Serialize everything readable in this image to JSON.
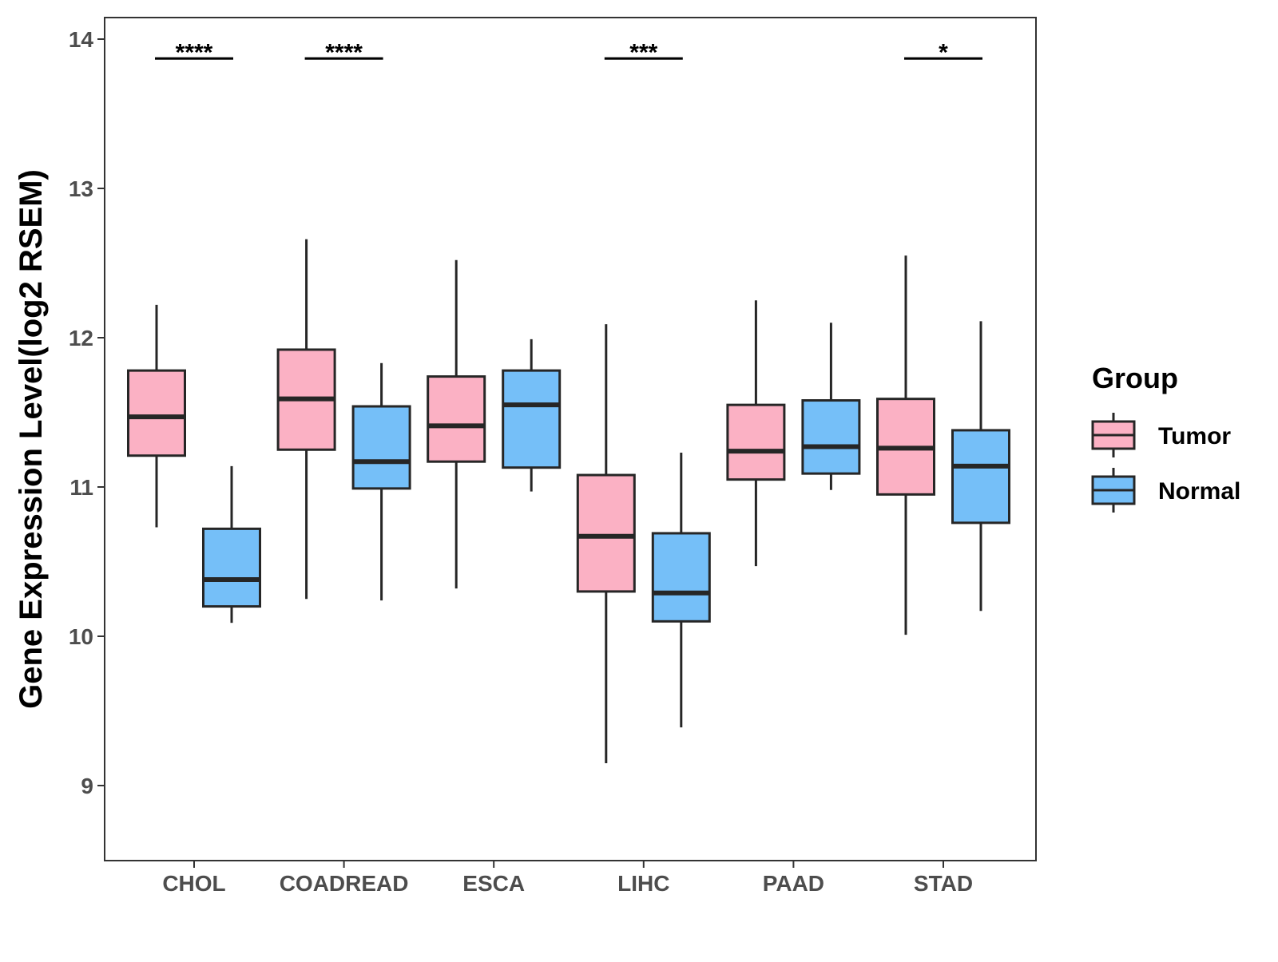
{
  "chart_data": {
    "type": "box",
    "title": "",
    "xlabel": "",
    "ylabel": "Gene Expression Level(log2 RSEM)",
    "ylim": [
      8.5,
      14.15
    ],
    "yticks": [
      9,
      10,
      11,
      12,
      13,
      14
    ],
    "grid": false,
    "legend": {
      "title": "Group",
      "position": "right",
      "entries": [
        {
          "name": "Tumor",
          "color": "#fbb1c4"
        },
        {
          "name": "Normal",
          "color": "#75bff8"
        }
      ]
    },
    "categories": [
      "CHOL",
      "COADREAD",
      "ESCA",
      "LIHC",
      "PAAD",
      "STAD"
    ],
    "series": [
      {
        "name": "Tumor",
        "color": "#fbb1c4",
        "boxes": [
          {
            "min": 10.73,
            "q1": 11.21,
            "median": 11.47,
            "q3": 11.78,
            "max": 12.22
          },
          {
            "min": 10.25,
            "q1": 11.25,
            "median": 11.59,
            "q3": 11.92,
            "max": 12.66
          },
          {
            "min": 10.32,
            "q1": 11.17,
            "median": 11.41,
            "q3": 11.74,
            "max": 12.52
          },
          {
            "min": 9.15,
            "q1": 10.3,
            "median": 10.67,
            "q3": 11.08,
            "max": 12.09
          },
          {
            "min": 10.47,
            "q1": 11.05,
            "median": 11.24,
            "q3": 11.55,
            "max": 12.25
          },
          {
            "min": 10.01,
            "q1": 10.95,
            "median": 11.26,
            "q3": 11.59,
            "max": 12.55
          }
        ]
      },
      {
        "name": "Normal",
        "color": "#75bff8",
        "boxes": [
          {
            "min": 10.09,
            "q1": 10.2,
            "median": 10.38,
            "q3": 10.72,
            "max": 11.14
          },
          {
            "min": 10.24,
            "q1": 10.99,
            "median": 11.17,
            "q3": 11.54,
            "max": 11.83
          },
          {
            "min": 10.97,
            "q1": 11.13,
            "median": 11.55,
            "q3": 11.78,
            "max": 11.99
          },
          {
            "min": 9.39,
            "q1": 10.1,
            "median": 10.29,
            "q3": 10.69,
            "max": 11.23
          },
          {
            "min": 10.98,
            "q1": 11.09,
            "median": 11.27,
            "q3": 11.58,
            "max": 12.1
          },
          {
            "min": 10.17,
            "q1": 10.76,
            "median": 11.14,
            "q3": 11.38,
            "max": 12.11
          }
        ]
      }
    ],
    "significance": [
      {
        "category": "CHOL",
        "label": "****"
      },
      {
        "category": "COADREAD",
        "label": "****"
      },
      {
        "category": "LIHC",
        "label": "***"
      },
      {
        "category": "STAD",
        "label": "*"
      }
    ],
    "significance_level": 13.87
  }
}
